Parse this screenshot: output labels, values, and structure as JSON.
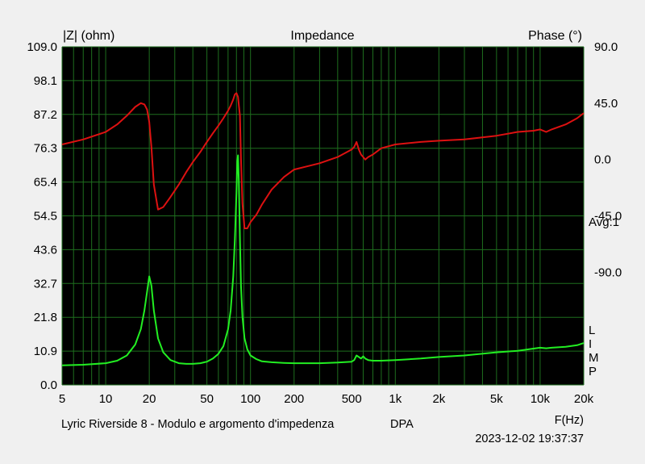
{
  "chart_data": {
    "type": "line",
    "title": "Impedance",
    "ylabel_left": "|Z| (ohm)",
    "ylabel_right": "Phase (°)",
    "xlabel": "F(Hz)",
    "x_scale": "log",
    "xlim": [
      5,
      20000
    ],
    "ylim_left": [
      0,
      109
    ],
    "ylim_right": [
      -180,
      90
    ],
    "x_ticks": [
      {
        "v": 5,
        "label": "5"
      },
      {
        "v": 10,
        "label": "10"
      },
      {
        "v": 20,
        "label": "20"
      },
      {
        "v": 50,
        "label": "50"
      },
      {
        "v": 100,
        "label": "100"
      },
      {
        "v": 200,
        "label": "200"
      },
      {
        "v": 500,
        "label": "500"
      },
      {
        "v": 1000,
        "label": "1k"
      },
      {
        "v": 2000,
        "label": "2k"
      },
      {
        "v": 5000,
        "label": "5k"
      },
      {
        "v": 10000,
        "label": "10k"
      },
      {
        "v": 20000,
        "label": "20k"
      }
    ],
    "y_ticks_left": [
      "0.0",
      "10.9",
      "21.8",
      "32.7",
      "43.6",
      "54.5",
      "65.4",
      "76.3",
      "87.2",
      "98.1",
      "109.0"
    ],
    "y_ticks_right": [
      "90.0",
      "45.0",
      "0.0",
      "-45.0",
      "-90.0"
    ],
    "grid": true,
    "annotations": {
      "avg": "Avg:1",
      "limp": [
        "L",
        "I",
        "M",
        "P"
      ]
    },
    "footer": {
      "left": "Lyric Riverside 8 - Modulo e argomento d'impedenza",
      "mid": "DPA",
      "timestamp": "2023-12-02 19:37:37"
    },
    "colors": {
      "background": "#000000",
      "grid": "#1e6e1e",
      "impedance": "#22ee22",
      "phase": "#dd1111",
      "page": "#f0f0f0"
    },
    "series": [
      {
        "axis": "left",
        "color": "#22ee22",
        "x": [
          5,
          7,
          10,
          12,
          14,
          16,
          17.5,
          18.5,
          19.3,
          20,
          20.7,
          21.5,
          23,
          25,
          28,
          32,
          36,
          40,
          45,
          50,
          55,
          60,
          65,
          70,
          73,
          76,
          78,
          80,
          81,
          82,
          83,
          84.5,
          86,
          88,
          91,
          95,
          100,
          110,
          120,
          140,
          170,
          200,
          300,
          400,
          500,
          520,
          540,
          560,
          580,
          600,
          620,
          650,
          700,
          800,
          1000,
          1500,
          2000,
          3000,
          5000,
          7000,
          9000,
          10000,
          11000,
          12000,
          15000,
          18000,
          20000
        ],
        "y": [
          6.3,
          6.5,
          7.0,
          7.8,
          9.5,
          13.0,
          18.0,
          24.0,
          30.0,
          35.0,
          32.0,
          24.0,
          15.0,
          10.5,
          8.0,
          7.0,
          6.8,
          6.8,
          7.0,
          7.5,
          8.5,
          10.0,
          12.5,
          18.0,
          24.0,
          35.0,
          47.0,
          62.0,
          72.0,
          74.0,
          66.0,
          47.0,
          32.0,
          22.0,
          15.0,
          11.5,
          9.5,
          8.3,
          7.6,
          7.3,
          7.1,
          7.0,
          7.0,
          7.2,
          7.5,
          8.0,
          9.5,
          9.0,
          8.5,
          9.2,
          8.5,
          8.0,
          7.8,
          7.8,
          8.0,
          8.5,
          9.0,
          9.5,
          10.5,
          11.0,
          11.7,
          12.0,
          11.8,
          12.0,
          12.3,
          12.8,
          13.5
        ]
      },
      {
        "axis": "right",
        "color": "#dd1111",
        "x": [
          5,
          7,
          10,
          12,
          14,
          16,
          17.5,
          18.5,
          19.3,
          20,
          20.7,
          21.5,
          23,
          25,
          28,
          32,
          36,
          40,
          45,
          50,
          55,
          60,
          65,
          70,
          73,
          76,
          78,
          80,
          82,
          84.5,
          86,
          88,
          91,
          95,
          100,
          110,
          120,
          140,
          170,
          200,
          300,
          400,
          500,
          520,
          540,
          560,
          580,
          600,
          620,
          650,
          700,
          800,
          1000,
          1500,
          2000,
          3000,
          5000,
          7000,
          9000,
          10000,
          11000,
          12000,
          15000,
          18000,
          20000
        ],
        "y": [
          12,
          16,
          22,
          28,
          35,
          42,
          45,
          44,
          40,
          30,
          10,
          -20,
          -40,
          -38,
          -30,
          -20,
          -10,
          -2,
          6,
          14,
          21,
          27,
          33,
          39,
          43,
          48,
          52,
          53,
          50,
          35,
          0,
          -35,
          -55,
          -55,
          -50,
          -44,
          -36,
          -24,
          -14,
          -8,
          -3,
          2,
          8,
          10,
          14,
          8,
          4,
          2,
          0,
          2,
          4,
          9,
          12,
          14,
          15,
          16,
          19,
          22,
          23,
          24,
          22,
          24,
          28,
          33,
          37
        ]
      }
    ]
  }
}
